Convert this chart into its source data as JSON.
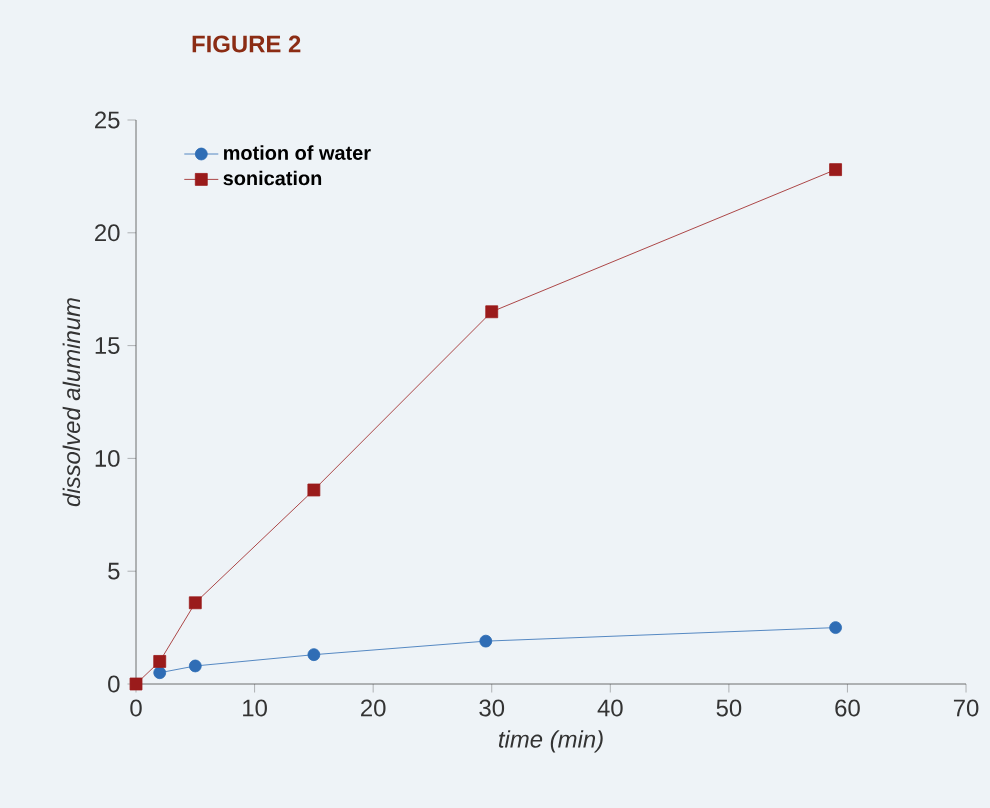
{
  "chart_data": {
    "type": "line",
    "title": "FIGURE 2",
    "xlabel": "time (min)",
    "ylabel": "dissolved aluminum",
    "xlim": [
      0,
      70
    ],
    "ylim": [
      0,
      25
    ],
    "xticks": [
      0,
      10,
      20,
      30,
      40,
      50,
      60,
      70
    ],
    "yticks": [
      0,
      5,
      10,
      15,
      20,
      25
    ],
    "legend": "top left",
    "grid": false,
    "series": [
      {
        "name": "motion of water",
        "color": "#2f6db5",
        "marker": "circle",
        "x": [
          2,
          5,
          15,
          29.5,
          59
        ],
        "values": [
          0.5,
          0.8,
          1.3,
          1.9,
          2.5
        ]
      },
      {
        "name": "sonication",
        "color": "#9a1b1b",
        "marker": "square",
        "x": [
          0,
          2,
          5,
          15,
          30,
          59
        ],
        "values": [
          0,
          1.0,
          3.6,
          8.6,
          16.5,
          22.8
        ]
      }
    ]
  }
}
